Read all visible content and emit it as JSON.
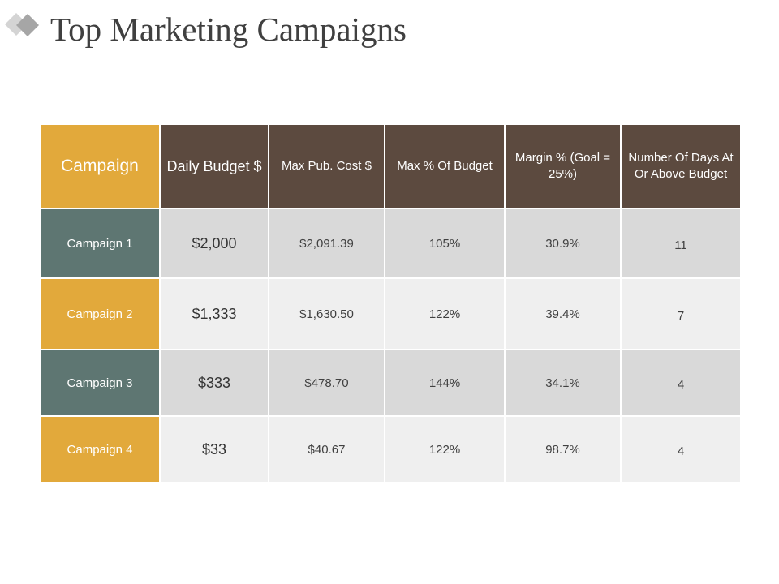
{
  "slide": {
    "title": "Top Marketing Campaigns"
  },
  "colors": {
    "header_brown": "#5c4a3f",
    "accent_gold": "#e2a93b",
    "slate_teal": "#5e7672",
    "row_gray_dark": "#d9d9d9",
    "row_gray_light": "#efefef",
    "logo_gray": "#a6a6a6"
  },
  "table": {
    "headers": {
      "campaign": "Campaign",
      "daily_budget": "Daily Budget $",
      "max_pub_cost": "Max Pub. Cost $",
      "max_pct_budget": "Max % Of Budget",
      "margin": "Margin % (Goal = 25%)",
      "days_above": "Number Of Days At Or Above Budget"
    },
    "rows": [
      {
        "campaign": "Campaign 1",
        "daily_budget": "$2,000",
        "max_pub_cost": "$2,091.39",
        "max_pct_budget": "105%",
        "margin": "30.9%",
        "days_above": "11"
      },
      {
        "campaign": "Campaign 2",
        "daily_budget": "$1,333",
        "max_pub_cost": "$1,630.50",
        "max_pct_budget": "122%",
        "margin": "39.4%",
        "days_above": "7"
      },
      {
        "campaign": "Campaign 3",
        "daily_budget": "$333",
        "max_pub_cost": "$478.70",
        "max_pct_budget": "144%",
        "margin": "34.1%",
        "days_above": "4"
      },
      {
        "campaign": "Campaign 4",
        "daily_budget": "$33",
        "max_pub_cost": "$40.67",
        "max_pct_budget": "122%",
        "margin": "98.7%",
        "days_above": "4"
      }
    ]
  }
}
